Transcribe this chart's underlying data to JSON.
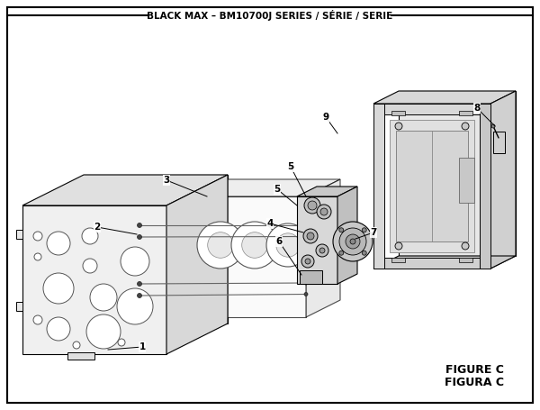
{
  "title": "BLACK MAX – BM10700J SERIES / SÉRIE / SERIE",
  "figure_label": "FIGURE C",
  "figura_label": "FIGURA C",
  "bg_color": "#ffffff",
  "border_color": "#000000",
  "text_color": "#000000",
  "title_fontsize": 7.5,
  "label_fontsize": 7.5,
  "figure_fontsize": 9
}
